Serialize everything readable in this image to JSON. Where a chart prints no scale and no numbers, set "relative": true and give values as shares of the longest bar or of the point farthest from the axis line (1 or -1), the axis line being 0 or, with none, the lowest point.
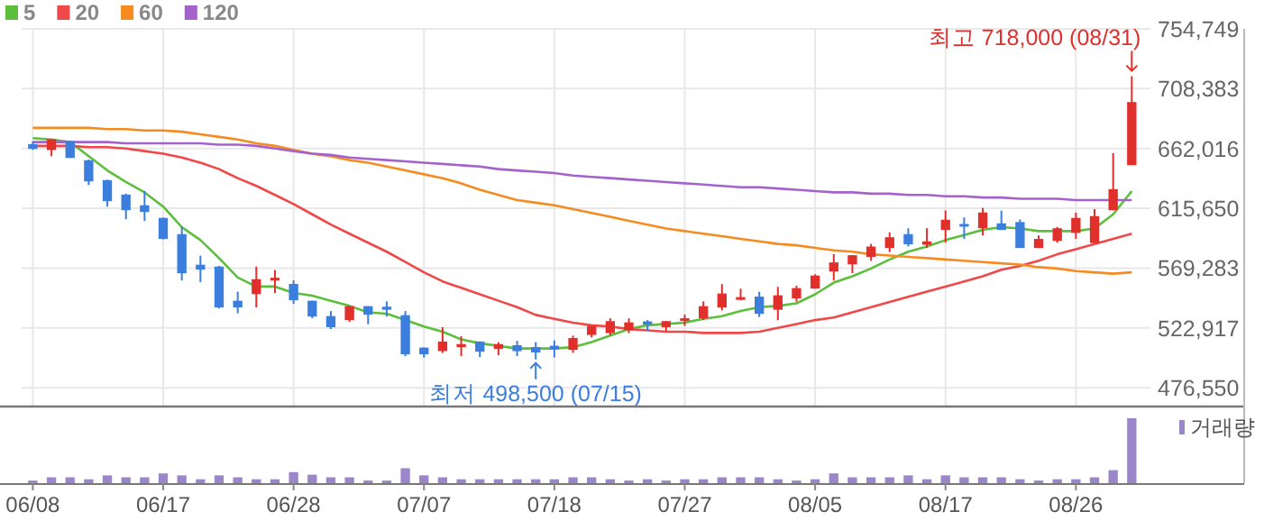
{
  "chart_data": [
    {
      "type": "candlestick",
      "categories": [
        null,
        null,
        null,
        null,
        null,
        null,
        null,
        null,
        null,
        null,
        null,
        null,
        null,
        null,
        null,
        null,
        null,
        null,
        null,
        null,
        null,
        null,
        null,
        null,
        null,
        null,
        null,
        null,
        null,
        null,
        null,
        null,
        null,
        null,
        null,
        null,
        null,
        null,
        null,
        null,
        null,
        null,
        null,
        null,
        null,
        null,
        null,
        null,
        null,
        null,
        null,
        null,
        null,
        null,
        null,
        null,
        null,
        null,
        null,
        null
      ],
      "ohlc": [
        [
          665400,
          667500,
          661000,
          661700
        ],
        [
          660800,
          669200,
          656000,
          669200
        ],
        [
          667800,
          667800,
          654700,
          654700
        ],
        [
          652900,
          653500,
          633700,
          636500
        ],
        [
          637500,
          637800,
          617000,
          621200
        ],
        [
          626300,
          627000,
          607200,
          614200
        ],
        [
          618000,
          629100,
          605800,
          612800
        ],
        [
          608200,
          608500,
          591500,
          591900
        ],
        [
          595600,
          601200,
          559700,
          565300
        ],
        [
          571900,
          578900,
          558400,
          568100
        ],
        [
          570500,
          571000,
          538000,
          538800
        ],
        [
          544000,
          551000,
          534200,
          538800
        ],
        [
          549100,
          570500,
          538800,
          560700
        ],
        [
          559800,
          567700,
          550000,
          561800
        ],
        [
          557000,
          559800,
          541600,
          544400
        ],
        [
          544000,
          544000,
          530400,
          531800
        ],
        [
          532100,
          536000,
          522100,
          523500
        ],
        [
          529000,
          539800,
          527600,
          539800
        ],
        [
          539800,
          539800,
          525800,
          533200
        ],
        [
          539400,
          543500,
          531800,
          537000
        ],
        [
          532800,
          536000,
          501000,
          502500
        ],
        [
          507700,
          507700,
          500000,
          502500
        ],
        [
          505000,
          523500,
          503500,
          512400
        ],
        [
          508000,
          516500,
          501100,
          510400
        ],
        [
          512400,
          512400,
          500300,
          504500
        ],
        [
          506700,
          511900,
          501700,
          510400
        ],
        [
          509500,
          512900,
          501100,
          504900
        ],
        [
          508100,
          511900,
          498500,
          503900
        ],
        [
          509100,
          513200,
          500000,
          506300
        ],
        [
          505900,
          516900,
          503600,
          515100
        ],
        [
          517500,
          524500,
          515600,
          524500
        ],
        [
          518900,
          530400,
          517100,
          528200
        ],
        [
          521200,
          530400,
          518900,
          527200
        ],
        [
          528000,
          529000,
          520700,
          525500
        ],
        [
          523500,
          528200,
          520700,
          528200
        ],
        [
          528500,
          533200,
          524500,
          530400
        ],
        [
          530400,
          543500,
          529000,
          539800
        ],
        [
          538800,
          556900,
          536500,
          549600
        ],
        [
          545400,
          553300,
          544400,
          546800
        ],
        [
          547200,
          551000,
          531400,
          533800
        ],
        [
          537000,
          554700,
          529000,
          548200
        ],
        [
          545800,
          555600,
          543200,
          553800
        ],
        [
          553400,
          564500,
          553400,
          563500
        ],
        [
          566700,
          580100,
          559700,
          573700
        ],
        [
          572200,
          579300,
          565400,
          579300
        ],
        [
          578000,
          588000,
          575000,
          586000
        ],
        [
          584900,
          597000,
          581700,
          593200
        ],
        [
          595600,
          600200,
          586000,
          587700
        ],
        [
          587400,
          600200,
          585000,
          590000
        ],
        [
          598900,
          614000,
          589000,
          606800
        ],
        [
          603500,
          608600,
          591900,
          602300
        ],
        [
          600200,
          615900,
          594600,
          612400
        ],
        [
          604000,
          613800,
          598900,
          598900
        ],
        [
          605000,
          607000,
          584900,
          584900
        ],
        [
          584900,
          594600,
          584900,
          591900
        ],
        [
          590400,
          601200,
          589000,
          600200
        ],
        [
          596600,
          612200,
          592000,
          608200
        ],
        [
          588700,
          615000,
          588700,
          609600
        ],
        [
          614200,
          658400,
          614200,
          630500
        ],
        [
          649100,
          718000,
          649100,
          698000
        ]
      ],
      "colors": [
        "#3c7ede",
        "#e12f2b",
        "#3c7ede",
        "#3c7ede",
        "#3c7ede",
        "#3c7ede",
        "#3c7ede",
        "#3c7ede",
        "#3c7ede",
        "#3c7ede",
        "#3c7ede",
        "#3c7ede",
        "#e12f2b",
        "#e12f2b",
        "#3c7ede",
        "#3c7ede",
        "#3c7ede",
        "#e12f2b",
        "#3c7ede",
        "#3c7ede",
        "#3c7ede",
        "#3c7ede",
        "#e12f2b",
        "#e12f2b",
        "#3c7ede",
        "#e12f2b",
        "#3c7ede",
        "#3c7ede",
        "#3c7ede",
        "#e12f2b",
        "#e12f2b",
        "#e12f2b",
        "#e12f2b",
        "#3c7ede",
        "#e12f2b",
        "#e12f2b",
        "#e12f2b",
        "#e12f2b",
        "#e12f2b",
        "#3c7ede",
        "#e12f2b",
        "#e12f2b",
        "#e12f2b",
        "#e12f2b",
        "#e12f2b",
        "#e12f2b",
        "#e12f2b",
        "#3c7ede",
        "#e12f2b",
        "#e12f2b",
        "#3c7ede",
        "#e12f2b",
        "#3c7ede",
        "#3c7ede",
        "#e12f2b",
        "#e12f2b",
        "#e12f2b",
        "#e12f2b",
        "#e12f2b",
        "#e12f2b"
      ],
      "series": [
        {
          "name": "5",
          "type": "line",
          "color": "#5cbf3c",
          "values": [
            670000,
            669000,
            667000,
            656000,
            645000,
            636000,
            628000,
            617000,
            601000,
            591000,
            577000,
            562000,
            555000,
            555000,
            550000,
            548000,
            544000,
            540000,
            535000,
            534000,
            529000,
            524000,
            520000,
            514000,
            511000,
            509000,
            507000,
            507000,
            507000,
            508000,
            512000,
            517000,
            522000,
            525000,
            526000,
            527000,
            530000,
            532000,
            536000,
            539000,
            540000,
            542000,
            549000,
            558000,
            563000,
            569000,
            576000,
            582000,
            586000,
            591000,
            595000,
            599000,
            601000,
            600000,
            598000,
            598000,
            598000,
            600000,
            611000,
            629000
          ]
        },
        {
          "name": "20",
          "type": "line",
          "color": "#f04848",
          "values": [
            664000,
            664000,
            664000,
            663000,
            663000,
            662000,
            660000,
            658000,
            655000,
            651000,
            646000,
            639000,
            633000,
            626000,
            619000,
            611000,
            603000,
            596000,
            589000,
            582000,
            574000,
            566000,
            559000,
            554000,
            549000,
            544000,
            539000,
            533000,
            530000,
            527000,
            525000,
            524000,
            522000,
            521000,
            520000,
            520000,
            519000,
            519000,
            519000,
            520000,
            523000,
            526000,
            529000,
            531000,
            535000,
            539000,
            543000,
            547000,
            551000,
            555000,
            559000,
            563000,
            568000,
            571000,
            575000,
            580000,
            584000,
            588000,
            592000,
            596000
          ]
        },
        {
          "name": "60",
          "type": "line",
          "color": "#f68b1f",
          "values": [
            678000,
            678000,
            678000,
            678000,
            677000,
            677000,
            676000,
            676000,
            675000,
            673000,
            671000,
            669000,
            666000,
            664000,
            661000,
            658000,
            656000,
            653000,
            651000,
            648000,
            645000,
            642000,
            639000,
            635000,
            630000,
            626000,
            622000,
            620000,
            618000,
            615000,
            612000,
            609000,
            606000,
            603000,
            600000,
            598000,
            596000,
            594000,
            592000,
            590000,
            588000,
            587000,
            585000,
            583000,
            582000,
            580000,
            579000,
            578000,
            577000,
            576000,
            575000,
            574000,
            573000,
            572000,
            570000,
            569000,
            567000,
            566000,
            565000,
            566000
          ]
        },
        {
          "name": "120",
          "type": "line",
          "color": "#a463cc",
          "values": [
            667000,
            667000,
            667000,
            667000,
            667000,
            666000,
            666000,
            666000,
            666000,
            666000,
            665000,
            665000,
            664000,
            662000,
            660000,
            658000,
            657000,
            655000,
            654000,
            653000,
            652000,
            651000,
            650000,
            649000,
            648000,
            646000,
            645000,
            644000,
            643000,
            641000,
            640000,
            639000,
            638000,
            637000,
            636000,
            635000,
            634000,
            633000,
            632000,
            632000,
            631000,
            630000,
            629000,
            628000,
            628000,
            627000,
            627000,
            626000,
            626000,
            625000,
            625000,
            624000,
            624000,
            623000,
            623000,
            623000,
            622000,
            622000,
            622000,
            622000
          ]
        }
      ],
      "ylim": [
        462000,
        754749
      ],
      "yticks": [
        {
          "value": 754749,
          "label": "754,749"
        },
        {
          "value": 708383,
          "label": "708,383"
        },
        {
          "value": 662016,
          "label": "662,016"
        },
        {
          "value": 615650,
          "label": "615,650"
        },
        {
          "value": 569283,
          "label": "569,283"
        },
        {
          "value": 522917,
          "label": "522,917"
        },
        {
          "value": 476550,
          "label": "476,550"
        }
      ],
      "grid": true,
      "legend": "top left",
      "tick_labels": "y",
      "annotations": [
        "최고 718,000 (08/31)",
        "최저 498,500 (07/15)"
      ]
    },
    {
      "type": "bar",
      "relative": true,
      "categories": [
        "06/08",
        null,
        null,
        null,
        null,
        null,
        null,
        "06/17",
        null,
        null,
        null,
        null,
        null,
        null,
        "06/28",
        null,
        null,
        null,
        null,
        null,
        null,
        "07/07",
        null,
        null,
        null,
        null,
        null,
        null,
        "07/18",
        null,
        null,
        null,
        null,
        null,
        null,
        "07/27",
        null,
        null,
        null,
        null,
        null,
        null,
        "08/05",
        null,
        null,
        null,
        null,
        null,
        null,
        "08/17",
        null,
        null,
        null,
        null,
        null,
        null,
        "08/26",
        null,
        null,
        null
      ],
      "series": [
        {
          "name": "거래량",
          "color": "#9b86c9",
          "values": [
            0.04,
            0.09,
            0.09,
            0.06,
            0.12,
            0.09,
            0.09,
            0.15,
            0.12,
            0.06,
            0.12,
            0.09,
            0.06,
            0.06,
            0.17,
            0.13,
            0.09,
            0.09,
            0.04,
            0.04,
            0.23,
            0.12,
            0.09,
            0.06,
            0.06,
            0.06,
            0.06,
            0.06,
            0.06,
            0.09,
            0.09,
            0.06,
            0.04,
            0.06,
            0.04,
            0.06,
            0.06,
            0.09,
            0.09,
            0.09,
            0.06,
            0.04,
            0.06,
            0.15,
            0.09,
            0.09,
            0.09,
            0.12,
            0.06,
            0.12,
            0.09,
            0.09,
            0.09,
            0.06,
            0.04,
            0.06,
            0.06,
            0.09,
            0.2,
            1
          ]
        }
      ],
      "legend": "top right",
      "tick_labels": "x"
    }
  ]
}
